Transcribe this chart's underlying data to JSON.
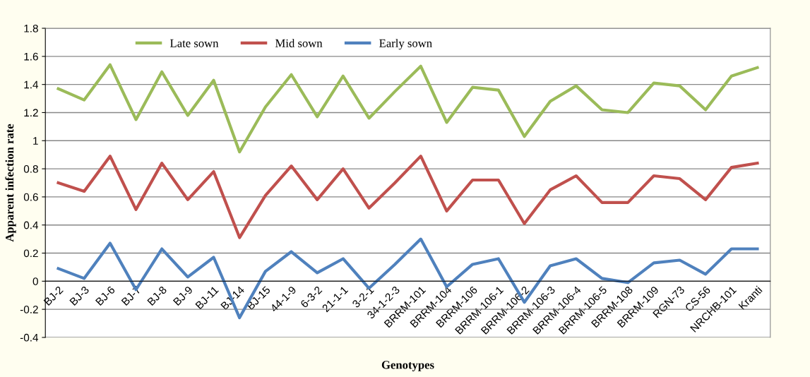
{
  "chart_data": {
    "type": "line",
    "xlabel": "Genotypes",
    "ylabel": "Apparent infection rate",
    "categories": [
      "BJ-2",
      "BJ-3",
      "BJ-6",
      "BJ-7",
      "BJ-8",
      "BJ-9",
      "BJ-11",
      "BJ-14",
      "BJ-15",
      "44-1-9",
      "6-3-2",
      "21-1-1",
      "3-2-1",
      "34-1-2-3",
      "BRRM-101",
      "BRRM-104",
      "BRRM-106",
      "BRRM-106-1",
      "BRRM-106-2",
      "BRRM-106-3",
      "BRRM-106-4",
      "BRRM-106-5",
      "BRRM-108",
      "BRRM-109",
      "RGN-73",
      "CS-56",
      "NRCHB-101",
      "Kranti"
    ],
    "series": [
      {
        "name": "Late sown",
        "color": "#9bbb59",
        "values": [
          1.37,
          1.29,
          1.54,
          1.15,
          1.49,
          1.18,
          1.43,
          0.92,
          1.24,
          1.47,
          1.17,
          1.46,
          1.16,
          1.35,
          1.53,
          1.13,
          1.38,
          1.36,
          1.03,
          1.28,
          1.39,
          1.22,
          1.2,
          1.41,
          1.39,
          1.22,
          1.46,
          1.52
        ]
      },
      {
        "name": "Mid sown",
        "color": "#c0504d",
        "values": [
          0.7,
          0.64,
          0.89,
          0.51,
          0.84,
          0.58,
          0.78,
          0.31,
          0.61,
          0.82,
          0.58,
          0.8,
          0.52,
          0.7,
          0.89,
          0.5,
          0.72,
          0.72,
          0.41,
          0.65,
          0.75,
          0.56,
          0.56,
          0.75,
          0.73,
          0.58,
          0.81,
          0.84
        ]
      },
      {
        "name": "Early sown",
        "color": "#4f81bd",
        "values": [
          0.09,
          0.02,
          0.27,
          -0.06,
          0.23,
          0.03,
          0.17,
          -0.26,
          0.07,
          0.21,
          0.06,
          0.16,
          -0.05,
          0.12,
          0.3,
          -0.04,
          0.12,
          0.16,
          -0.15,
          0.11,
          0.16,
          0.02,
          -0.01,
          0.13,
          0.15,
          0.05,
          0.23,
          0.23
        ]
      }
    ],
    "ylim": [
      -0.4,
      1.8
    ],
    "yticks": [
      {
        "value": -0.4,
        "label": "-0.4"
      },
      {
        "value": -0.2,
        "label": "-0.2"
      },
      0,
      0.2,
      0.4,
      0.6,
      0.8,
      1,
      1.2,
      1.4,
      1.6,
      1.8
    ],
    "grid": "y",
    "legend": "top",
    "marker": "none",
    "line_style": "solid"
  }
}
